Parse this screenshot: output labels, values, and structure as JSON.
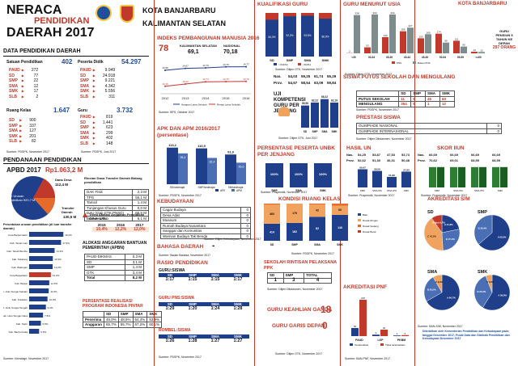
{
  "header": {
    "title1": "NERACA",
    "title2": "PENDIDIKAN",
    "title3": "DAERAH 2017",
    "city": "KOTA BANJARBARU",
    "province": "KALIMANTAN SELATAN"
  },
  "data_pendidikan": {
    "title": "DATA PENDIDIKAN DAERAH",
    "satuan": {
      "label": "Satuan Pendidikan",
      "total": "402",
      "rows": [
        {
          "k": "PAUD",
          "v": "272"
        },
        {
          "k": "SD",
          "v": "77"
        },
        {
          "k": "SMP",
          "v": "22"
        },
        {
          "k": "SMA",
          "v": "12"
        },
        {
          "k": "SMK",
          "v": "17"
        },
        {
          "k": "SLB",
          "v": "2"
        }
      ]
    },
    "peserta": {
      "label": "Peserta Didik",
      "total": "54.297",
      "rows": [
        {
          "k": "PAUD",
          "v": "9.949"
        },
        {
          "k": "SD",
          "v": "24.918"
        },
        {
          "k": "SMP",
          "v": "9.221"
        },
        {
          "k": "SMA",
          "v": "4.342"
        },
        {
          "k": "SMK",
          "v": "5.556"
        },
        {
          "k": "SLB",
          "v": "311"
        }
      ]
    },
    "ruang": {
      "label": "Ruang Kelas",
      "total": "1.647",
      "rows": [
        {
          "k": "SD",
          "v": "900"
        },
        {
          "k": "SMP",
          "v": "337"
        },
        {
          "k": "SMA",
          "v": "127"
        },
        {
          "k": "SMK",
          "v": "201"
        },
        {
          "k": "SLB",
          "v": "82"
        }
      ]
    },
    "guru": {
      "label": "Guru",
      "total": "3.732",
      "rows": [
        {
          "k": "PAUD",
          "v": "819"
        },
        {
          "k": "SD",
          "v": "1.441"
        },
        {
          "k": "SMP",
          "v": "623"
        },
        {
          "k": "SMA",
          "v": "299"
        },
        {
          "k": "SMK",
          "v": "402"
        },
        {
          "k": "SLB",
          "v": "148"
        }
      ]
    },
    "source1": "Sumber: PDSPK, November 2017",
    "source2": "Sumber: PDSPK, Juni 2017"
  },
  "pendanaan": {
    "title": "PENDANAAN PENDIDIKAN",
    "apbd_label": "APBD 2017",
    "apbd_value": "Rp1.063,2 M",
    "dana_desa": "Dana Desa",
    "dana_desa_val": "112,4 M",
    "non_urusan": "Non Urusan Pendidikan 920,7 M",
    "transfer": "Transfer Daerah",
    "transfer_val": "130,5 M",
    "rincian_title": "Rincian Dana Transfer Daerah Bidang pendidikan",
    "rincian": [
      {
        "k": "DAK Fisik",
        "v": "2,3 M"
      },
      {
        "k": "TPG",
        "v": "55,1 M"
      },
      {
        "k": "Tamsil",
        "v": "1,4 M"
      },
      {
        "k": "Tunjangan Khusus Guru",
        "v": "0,0 M"
      },
      {
        "k": "DAU (Gaji GTK PNSD)",
        "v": "65,6 M"
      },
      {
        "k": "BOP PAUD",
        "v": "6,1 M"
      }
    ],
    "peruntukan_title": "Peruntukan urusan pendidikan (di luar transfer daerah)",
    "peruntukan": [
      {
        "k": "Kota Banjarmasin",
        "v": "19,2%"
      },
      {
        "k": "Kab. Tanah Laut",
        "v": "17,9%"
      },
      {
        "k": "Kab. Tanah Bumbu",
        "v": "14,3%"
      },
      {
        "k": "Kab. Tabalong",
        "v": "13,3%"
      },
      {
        "k": "Kab. Balangan",
        "v": "13,2%"
      },
      {
        "k": "Kota Banjarbaru",
        "v": "12,2%"
      },
      {
        "k": "Kab. Banjar",
        "v": "11,3%"
      },
      {
        "k": "Kab. Hulu Sungai Selatan",
        "v": "11,0%"
      },
      {
        "k": "Kab. Kotabaru",
        "v": "10,3%"
      },
      {
        "k": "Kab. Hulu Sungai Tengah",
        "v": "9,4%"
      },
      {
        "k": "Kab. Hulu Sungai Utara",
        "v": "7,8%"
      },
      {
        "k": "Kab. Tapin",
        "v": "6,6%"
      },
      {
        "k": "Kab. Barito Kuala",
        "v": "5,6%"
      }
    ],
    "trend_title": "Trend Alokasi Anggaran Pendidikan dalam APBD",
    "trend_years": [
      "2015",
      "2016",
      "2017"
    ],
    "trend_vals": [
      "10,4%",
      "12,2%",
      "12,0%"
    ],
    "bantuan_title": "ALOKASI ANGGARAN BANTUAN PEMERINTAH (APBN)",
    "bantuan": [
      {
        "k": "PAUD-DIKMAS",
        "v": "0,3 M"
      },
      {
        "k": "SD",
        "v": "3,1 M"
      },
      {
        "k": "SMP",
        "v": "1,4 M"
      },
      {
        "k": "GTK",
        "v": "3,4 M"
      },
      {
        "k": "Total",
        "v": "8,2 M"
      }
    ],
    "realisasi_title": "PERSENTASE REALISASI PROGRAM INDONESIA PINTAR",
    "realisasi_head": [
      "SD",
      "SMP",
      "SMA",
      "SMK"
    ],
    "penerima": {
      "k": "Penerima",
      "v": [
        "46,0%",
        "48,5%",
        "64,4%",
        "53,9%"
      ]
    },
    "anggaran": {
      "k": "Anggaran",
      "v": [
        "65,7%",
        "55,7%",
        "67,2%",
        "60,1%"
      ]
    },
    "source": "Sumber: Kemdagri, November 2017"
  },
  "ipm": {
    "title": "INDEKS PEMBANGUNAN MANUSIA 2016",
    "rank": "78",
    "kab_label": "KALIMANTAN SELATAN",
    "kab_val": "69,1",
    "nas_label": "NASIONAL",
    "nas_val": "70,18",
    "years": [
      "2012",
      "2013",
      "2014",
      "2015",
      "2016"
    ],
    "hls": [
      "14,55",
      "14,67",
      "14,70",
      "14,76",
      "14,77"
    ],
    "rls": [
      "10,46",
      "10,60",
      "10,74",
      "10,75",
      "10,76"
    ],
    "hls_legend": "Harapan Lama Sekolah",
    "rls_legend": "Rerata Lama Sekolah",
    "source": "Sumber: BPS, Oktober 2017"
  },
  "apk": {
    "title": "APK DAN APM 2016/2017 (persentase)",
    "groups": [
      "SD/sederajat",
      "SMP/sederajat",
      "SM/sederajat"
    ],
    "apk": [
      113.2,
      110.9,
      91.9
    ],
    "apm": [
      95.4,
      81.4,
      66.6
    ],
    "apk_labels": [
      "113,2",
      "110,9",
      "91,9"
    ],
    "apm_labels": [
      "95,4",
      "81,4",
      "66,6"
    ],
    "legend_apk": "APK",
    "legend_apm": "APM",
    "source": "Sumber: PDSPK, November 2017"
  },
  "kebudayaan": {
    "title": "KEBUDAYAAN",
    "rows": [
      {
        "k": "Cagar Budaya",
        "v": "0"
      },
      {
        "k": "Desa Adat",
        "v": "0"
      },
      {
        "k": "Museum",
        "v": "0"
      },
      {
        "k": "Rumah Budaya Nusantara",
        "v": "0"
      },
      {
        "k": "Sanggar dan Komunitas",
        "v": "0"
      },
      {
        "k": "Warisan Budaya Tak Benda",
        "v": "0"
      }
    ],
    "source": "Sumber: Ditjen Kebudayaan, November 2017"
  },
  "bahasa": {
    "title": "BAHASA DAERAH",
    "value": "-",
    "source": "Sumber: Badan Bahasa, November 2017"
  },
  "rasio": {
    "title": "RASIO PENDIDIKAN",
    "guru_siswa": "GURU:SISWA",
    "head": [
      "SD",
      "SMP",
      "SMA",
      "SMK"
    ],
    "gs": [
      "1:17",
      "1:15",
      "1:15",
      "1:17"
    ],
    "pns": "GURU PNS:SISWA",
    "pns_v": [
      "1:29",
      "1:20",
      "1:24",
      "1:28"
    ],
    "rombel": "ROMBEL:SISWA",
    "rombel_v": [
      "1:26",
      "1:28",
      "1:27",
      "1:27"
    ],
    "source": "Sumber: PDSPK, November 2017"
  },
  "kualifikasi": {
    "title": "KUALIFIKASI GURU",
    "cats": [
      "SD",
      "SMP",
      "SMA",
      "SMK"
    ],
    "d4": [
      84.3,
      92.2,
      93.5,
      86.9
    ],
    "d4_labels": [
      "84,3%",
      "92,2%",
      "93,5%",
      "86,9%"
    ],
    "legend1": ">=D4/S1",
    "legend2": "<D4/S1",
    "source": "Sumber: Ditjen GTK, November 2017"
  },
  "usia": {
    "title": "GURU MENURUT USIA",
    "ages": [
      "<30",
      "30-34",
      "35-39",
      "40-44",
      "45-49",
      "50-54",
      "55-59",
      ">=60"
    ],
    "pns": [
      2,
      53,
      143,
      195,
      133,
      174,
      111,
      14
    ],
    "bukan": [
      338,
      344,
      344,
      227,
      169,
      95,
      60,
      12
    ],
    "legend1": "PNS",
    "legend2": "Bukan PNS",
    "note": "GURU PENSIUN 5 TAHUN KE DEPAN",
    "note_val": "297 ORANG",
    "source": "Sumber: Ditjen GTK, November 2017"
  },
  "un": {
    "title": "UJI KOMPETENSI GURU PER JENJANG",
    "nas_label": "Nas.",
    "prov_label": "Prov.",
    "nas": [
      "54,03",
      "59,25",
      "61,74",
      "55,29"
    ],
    "prov": [
      "54,57",
      "58,54",
      "63,09",
      "59,84"
    ],
    "cats": [
      "SD",
      "SMP",
      "SMA",
      "SMK"
    ],
    "vals": [
      59.56,
      62.22,
      65.22,
      62.19
    ],
    "val_labels": [
      "59,56",
      "62,22",
      "65,22",
      "62,19"
    ],
    "source": "Sumber: Ditjen GTK, Juni 2017"
  },
  "putus": {
    "title": "SISWA PUTUS SEKOLAH DAN MENGULANG",
    "head": [
      "SD",
      "SMP",
      "SMA",
      "SMK"
    ],
    "putus": {
      "k": "PUTUS SEKOLAH",
      "v": [
        "11",
        "9",
        "46",
        "60"
      ]
    },
    "ulang": {
      "k": "MENGULANG",
      "v": [
        "354",
        "5",
        "1",
        "12"
      ]
    },
    "source": "Sumber: PDSPK, November 2017"
  },
  "prestasi": {
    "title": "PRESTASI SISWA",
    "rows": [
      {
        "k": "OLIMPIADE NASIONAL",
        "v": "0"
      },
      {
        "k": "OLIMPIADE INTERNASIONAL",
        "v": "0"
      }
    ],
    "source": "Sumber: Ditjen Dikdasmen, November 2017"
  },
  "unbk": {
    "title": "PERSENTASE PESERTA UNBK PER JENJANG",
    "cats": [
      "SMP",
      "SMA",
      "SMK"
    ],
    "vals": [
      100,
      100,
      100
    ],
    "labels": [
      "100%",
      "100%",
      "100%"
    ],
    "source": "Sumber: Puspendik, November 2017"
  },
  "hasil_un": {
    "title": "HASIL UN",
    "nas_label": "Nas.",
    "prov_label": "Prov.",
    "nas": [
      "54,25",
      "53,87",
      "47,53",
      "53,73"
    ],
    "prov": [
      "52,62",
      "51,30",
      "46,31",
      "50,48"
    ],
    "cats": [
      "SMP",
      "SMA IPA",
      "SMA IPS",
      "SMK"
    ],
    "vals": [
      60.47,
      58.59,
      51.88,
      57.8
    ],
    "labels": [
      "60,47",
      "58,59",
      "51,88",
      "57,80"
    ],
    "legend1": "2016",
    "legend2": "2017",
    "source": "Sumber: Puspendik, November 2017"
  },
  "iiun": {
    "title": "SKOR IIUN",
    "nas": [
      "66,69",
      "66,69",
      "66,69",
      "66,69"
    ],
    "prov": [
      "70,62",
      "69,01",
      "68,59",
      "68,59"
    ],
    "cats": [
      "SMP",
      "SMA IPA",
      "SMA IPS",
      "SMK"
    ],
    "vals": [
      78,
      78,
      78,
      78
    ],
    "legend1": "2016",
    "legend2": "2017",
    "source": "Sumber: Puspendik, November 2017"
  },
  "kondisi": {
    "title": "KONDISI RUANG KELAS",
    "cats": [
      "SD",
      "SMP",
      "SMA",
      "SMK"
    ],
    "baik": [
      414,
      162,
      82,
      140
    ],
    "ringan": [
      460,
      175,
      42,
      50
    ],
    "sedang": [
      26,
      0,
      3,
      11
    ],
    "legend": [
      "Baik",
      "Rusak Ringan",
      "Rusak Sedang",
      "Rusak Berat"
    ],
    "source": "Sumber: PDSPK, November 2017"
  },
  "rintisan": {
    "title": "SEKOLAH RINTISAN PELAKSANA PPK",
    "head": [
      "SD",
      "SMP",
      "TOTAL"
    ],
    "vals": [
      "1",
      "3",
      "4"
    ],
    "source": "Sumber: Ditjen Dikdasmen, November 2017"
  },
  "keahlian": {
    "title": "GURU KEAHLIAN GANDA",
    "value": "18"
  },
  "garis_depan": {
    "title": "GURU GARIS DEPAN",
    "value": "0",
    "source": "Sumber: Ditjen GTK, November 2017"
  },
  "pnf": {
    "title": "AKREDITASI PNF",
    "cats": [
      "PAUD",
      "LKP",
      "PKBM"
    ],
    "terakreditasi": [
      50,
      9,
      4
    ],
    "tidak": [
      225,
      40,
      6
    ],
    "legend1": "Terakreditasi",
    "legend2": "Tidak terakreditasi",
    "source": "Sumber: BAN-PNF, November 2017"
  },
  "akreditasi": {
    "title": "AKREDITASI S/M",
    "sd": {
      "label": "SD",
      "slices": [
        {
          "k": "A",
          "v": "21,8%"
        },
        {
          "k": "B",
          "v": "27,3%"
        },
        {
          "k": "C",
          "v": "41,2%"
        },
        {
          "k": "Belum",
          "v": "9,7%"
        }
      ]
    },
    "smp": {
      "label": "SMP",
      "slices": [
        {
          "k": "A",
          "v": "63,6%"
        },
        {
          "k": "B",
          "v": "36,4%"
        }
      ]
    },
    "sma": {
      "label": "SMA",
      "slices": [
        {
          "k": "A",
          "v": "66,7%"
        },
        {
          "k": "B",
          "v": "25,0%"
        },
        {
          "k": "C",
          "v": "8,3%"
        }
      ]
    },
    "smk": {
      "label": "SMK",
      "slices": [
        {
          "k": "A",
          "v": "58,8%"
        },
        {
          "k": "B",
          "v": "35,3%"
        },
        {
          "k": "C",
          "v": "5,9%"
        }
      ]
    },
    "source": "Sumber: BAN-S/M, November 2017"
  },
  "footer": "Diterbitkan oleh Kementerian Pendidikan dan Kebudayaan pada tanggal Desember 2017, Pusat Data dan Statistik Pendidikan dan Kebudayaan Desember 2017",
  "colors": {
    "red": "#c0392b",
    "navy": "#1f3f8a",
    "orange": "#f0a35e",
    "green": "#2e7d32"
  }
}
